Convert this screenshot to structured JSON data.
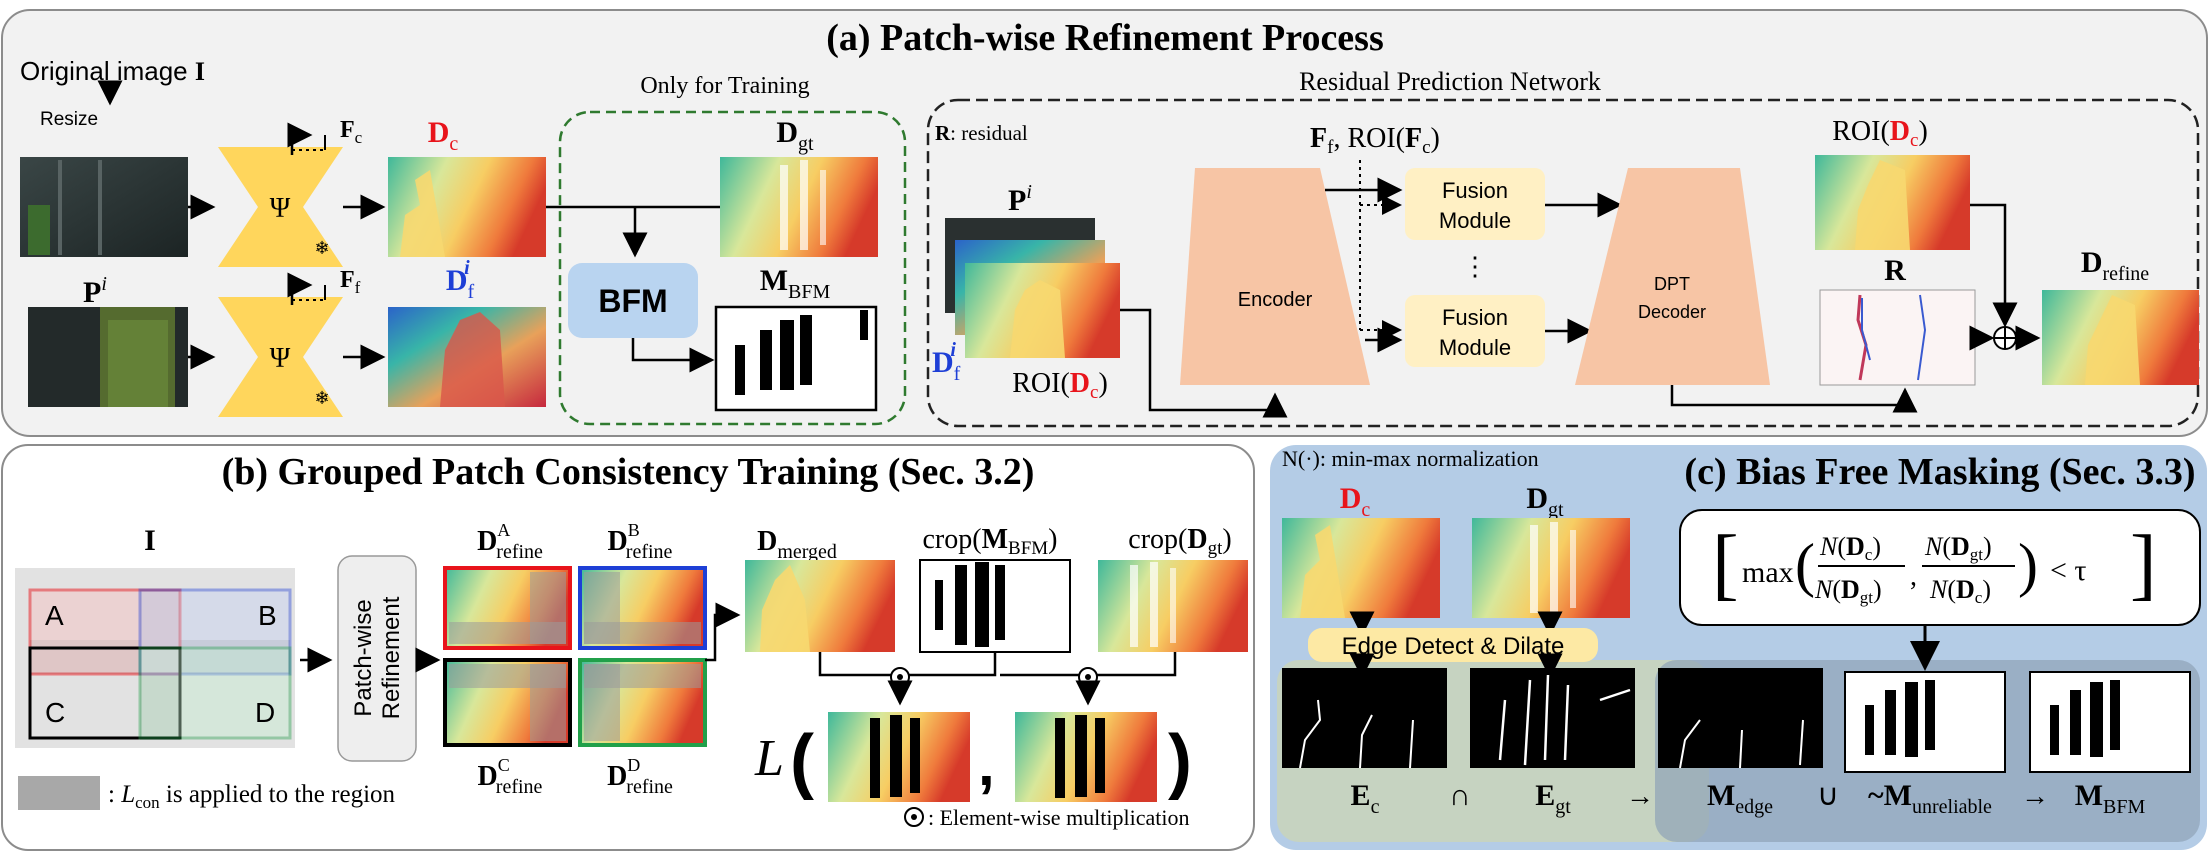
{
  "panel_a": {
    "title": "(a) Patch-wise Refinement Process",
    "original_image": "Original image ",
    "I": "I",
    "resize": "Resize",
    "psi": "Ψ",
    "snow": "❄",
    "F": "F",
    "c": "c",
    "f": "f",
    "D": "D",
    "P": "P",
    "i": "i",
    "gt": "gt",
    "only_training": "Only for Training",
    "bfm": "BFM",
    "M": "M",
    "BFM_sub": "BFM",
    "rpn_title": "Residual Prediction Network",
    "R": "R",
    "residual": ": residual",
    "roi_open": "ROI(",
    "roi_close": ")",
    "ff_roi": ", ROI(",
    "encoder": "Encoder",
    "fusion_1": "Fusion",
    "fusion_2": "Module",
    "dots": "⋮",
    "dpt_1": "DPT",
    "dpt_2": "Decoder",
    "refine": "refine",
    "oplus": "⊕"
  },
  "panel_b": {
    "title": "(b) Grouped Patch Consistency Training (Sec. 3.2)",
    "I": "I",
    "A": "A",
    "B": "B",
    "C": "C",
    "D": "D",
    "pw_1": "Patch-wise",
    "pw_2": "Refinement",
    "Dsym": "D",
    "refine": "refine",
    "merged": "merged",
    "crop": "crop(",
    "close": ")",
    "M": "M",
    "BFM": "BFM",
    "gt": "gt",
    "L": "L",
    "lparen": "(",
    "rparen": ")",
    "comma": ",",
    "lcon_pre": ": ",
    "lcon_L": "L",
    "lcon_sub": "con",
    "lcon_post": " is applied to the region",
    "elem_mult": ": Element-wise multiplication"
  },
  "panel_c": {
    "title": "(c) Bias Free Masking (Sec. 3.3)",
    "nnorm": "N(·): min-max normalization",
    "D": "D",
    "c": "c",
    "gt": "gt",
    "edge": "Edge Detect & Dilate",
    "E": "E",
    "M": "M",
    "edge_sub": "edge",
    "unrel_pre": "~M",
    "unrel_sub": "unreliable",
    "BFM_sub": "BFM",
    "cap": "∩",
    "cup": "∪",
    "arrow": "→",
    "formula_max": "max",
    "formula_N": "N",
    "formula_lt": "< τ"
  },
  "colors": {
    "red": "#e8141b",
    "blue": "#1e3fd6",
    "green": "#21a04a",
    "yellow": "#ffd65c",
    "encoder": "#f7c5a5",
    "fusion": "#fff0c4",
    "bfm": "#b9d4f0",
    "panel_c_bg": "#b4cce6"
  }
}
